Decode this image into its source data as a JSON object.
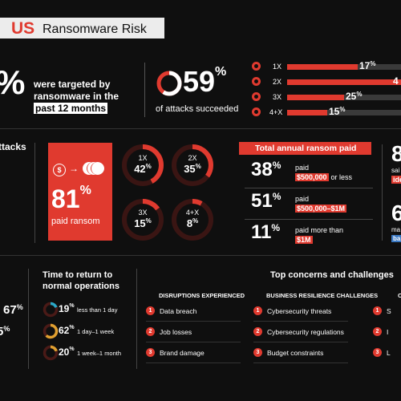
{
  "header": {
    "country": "US",
    "title": "Ransomware Risk"
  },
  "targeted": {
    "pct_suffix": "%",
    "line1": "were targeted by",
    "line2": "ransomware in the",
    "line3": "past 12 months"
  },
  "succeeded": {
    "value": "59",
    "unit": "%",
    "label": "of attacks succeeded",
    "fraction": 0.59
  },
  "attack_freq": [
    {
      "label": "1X",
      "value": "17",
      "fill": 0.62
    },
    {
      "label": "2X",
      "value": "4",
      "fill": 1.0
    },
    {
      "label": "3X",
      "value": "25",
      "fill": 0.5
    },
    {
      "label": "4+X",
      "value": "15",
      "fill": 0.35
    }
  ],
  "left_section": {
    "label": "ttacks"
  },
  "paid": {
    "value": "81",
    "unit": "%",
    "label": "paid ransom"
  },
  "paid_rings": [
    {
      "label": "1X",
      "value": "42",
      "unit": "%",
      "fraction": 0.42
    },
    {
      "label": "2X",
      "value": "35",
      "unit": "%",
      "fraction": 0.35
    },
    {
      "label": "3X",
      "value": "15",
      "unit": "%",
      "fraction": 0.15
    },
    {
      "label": "4+X",
      "value": "8",
      "unit": "%",
      "fraction": 0.08
    }
  ],
  "ransom_paid": {
    "title": "Total annual ransom paid",
    "rows": [
      {
        "value": "38",
        "unit": "%",
        "text": "paid",
        "tag": "$500,000",
        "tail": "or less"
      },
      {
        "value": "51",
        "unit": "%",
        "text": "paid",
        "tag": "$500,000–$1M",
        "tail": ""
      },
      {
        "value": "11",
        "unit": "%",
        "text": "paid more than",
        "tag": "$1M",
        "tail": ""
      }
    ]
  },
  "right_cut": {
    "n1": "8",
    "t1": "sai",
    "tag1": "ide",
    "n2": "6",
    "t2": "ma",
    "tag2": "ba"
  },
  "left_cut": {
    "v1": "67",
    "v2": "5"
  },
  "recovery": {
    "title1": "Time to return to",
    "title2": "normal operations",
    "rows": [
      {
        "value": "19",
        "unit": "%",
        "text": "less than 1 day",
        "fraction": 0.19
      },
      {
        "value": "62",
        "unit": "%",
        "text": "1 day–1 week",
        "fraction": 0.62
      },
      {
        "value": "20",
        "unit": "%",
        "text": "1 week–1 month",
        "fraction": 0.2
      }
    ]
  },
  "concerns": {
    "title": "Top concerns and challenges",
    "col1": {
      "header": "DISRUPTIONS EXPERIENCED",
      "items": [
        "Data breach",
        "Job losses",
        "Brand damage"
      ]
    },
    "col2": {
      "header": "BUSINESS RESILIENCE CHALLENGES",
      "items": [
        "Cybersecurity threats",
        "Cybersecurity regulations",
        "Budget constraints"
      ]
    },
    "col3_header": "C",
    "col3_items": [
      "S",
      "I",
      "L"
    ]
  },
  "colors": {
    "accent": "#e03a2f",
    "background": "#0f0f0f",
    "track": "#3a3a3a"
  }
}
